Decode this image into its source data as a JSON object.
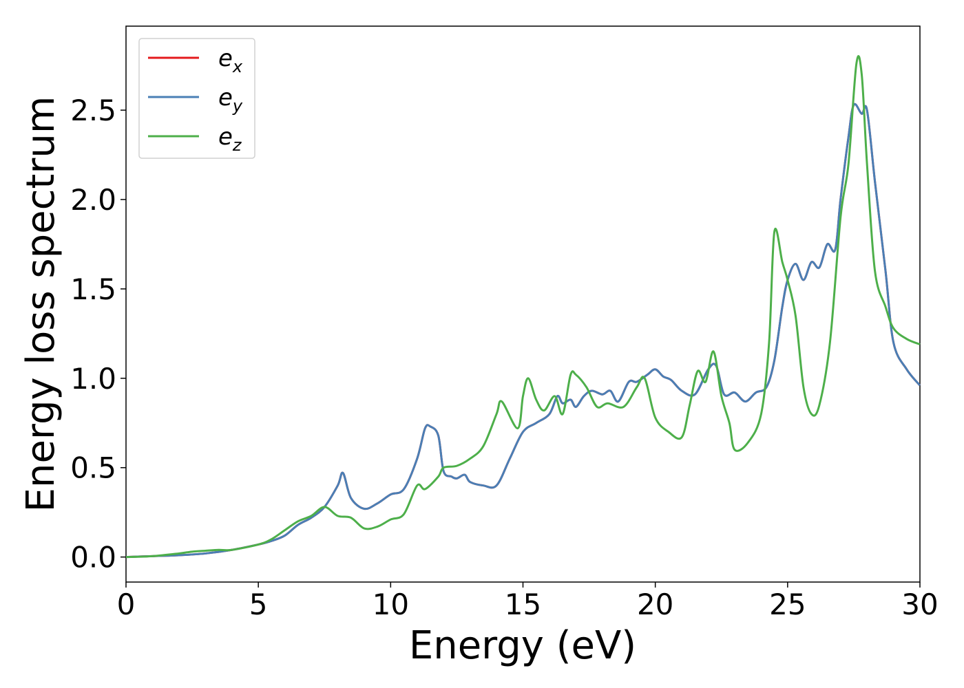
{
  "chart_data": {
    "type": "line",
    "xlabel": "Energy (eV)",
    "ylabel": "Energy loss spectrum",
    "xlim": [
      0,
      30
    ],
    "ylim": [
      -0.14,
      2.97
    ],
    "xticks": [
      0,
      5,
      10,
      15,
      20,
      25,
      30
    ],
    "xtick_labels": [
      "0",
      "5",
      "10",
      "15",
      "20",
      "25",
      "30"
    ],
    "yticks": [
      0.0,
      0.5,
      1.0,
      1.5,
      2.0,
      2.5
    ],
    "ytick_labels": [
      "0.0",
      "0.5",
      "1.0",
      "1.5",
      "2.0",
      "2.5"
    ],
    "grid": false,
    "legend_position": "upper-left",
    "series": [
      {
        "name": "e",
        "subscript": "x",
        "color": "#e41a1c",
        "x": [
          0,
          1,
          2,
          3,
          4,
          5,
          5.5,
          6,
          6.5,
          7,
          7.5,
          8,
          8.2,
          8.5,
          9,
          9.5,
          10,
          10.5,
          11,
          11.3,
          11.5,
          11.8,
          12,
          12.3,
          12.5,
          12.8,
          13,
          13.5,
          14,
          14.5,
          15,
          15.5,
          16,
          16.3,
          16.5,
          16.8,
          17,
          17.3,
          17.6,
          18,
          18.3,
          18.6,
          19,
          19.3,
          19.7,
          20,
          20.3,
          20.6,
          21,
          21.5,
          22,
          22.3,
          22.6,
          23,
          23.4,
          23.8,
          24.2,
          24.5,
          24.8,
          25,
          25.3,
          25.6,
          25.9,
          26.2,
          26.5,
          26.8,
          27,
          27.3,
          27.5,
          27.8,
          28,
          28.3,
          28.7,
          29,
          29.5,
          30
        ],
        "y": [
          0,
          0.005,
          0.01,
          0.02,
          0.04,
          0.07,
          0.09,
          0.12,
          0.18,
          0.22,
          0.28,
          0.4,
          0.47,
          0.33,
          0.27,
          0.3,
          0.35,
          0.38,
          0.55,
          0.72,
          0.73,
          0.68,
          0.48,
          0.45,
          0.44,
          0.46,
          0.42,
          0.4,
          0.4,
          0.55,
          0.7,
          0.75,
          0.8,
          0.9,
          0.86,
          0.88,
          0.84,
          0.9,
          0.93,
          0.91,
          0.93,
          0.87,
          0.98,
          0.98,
          1.02,
          1.05,
          1.01,
          0.99,
          0.93,
          0.91,
          1.05,
          1.07,
          0.91,
          0.92,
          0.87,
          0.92,
          0.95,
          1.1,
          1.4,
          1.55,
          1.64,
          1.55,
          1.65,
          1.62,
          1.75,
          1.72,
          2.0,
          2.35,
          2.53,
          2.48,
          2.5,
          2.1,
          1.6,
          1.2,
          1.05,
          0.96
        ]
      },
      {
        "name": "e",
        "subscript": "y",
        "color": "#4a7fb5",
        "x": [
          0,
          1,
          2,
          3,
          4,
          5,
          5.5,
          6,
          6.5,
          7,
          7.5,
          8,
          8.2,
          8.5,
          9,
          9.5,
          10,
          10.5,
          11,
          11.3,
          11.5,
          11.8,
          12,
          12.3,
          12.5,
          12.8,
          13,
          13.5,
          14,
          14.5,
          15,
          15.5,
          16,
          16.3,
          16.5,
          16.8,
          17,
          17.3,
          17.6,
          18,
          18.3,
          18.6,
          19,
          19.3,
          19.7,
          20,
          20.3,
          20.6,
          21,
          21.5,
          22,
          22.3,
          22.6,
          23,
          23.4,
          23.8,
          24.2,
          24.5,
          24.8,
          25,
          25.3,
          25.6,
          25.9,
          26.2,
          26.5,
          26.8,
          27,
          27.3,
          27.5,
          27.8,
          28,
          28.3,
          28.7,
          29,
          29.5,
          30
        ],
        "y": [
          0,
          0.005,
          0.01,
          0.02,
          0.04,
          0.07,
          0.09,
          0.12,
          0.18,
          0.22,
          0.28,
          0.4,
          0.47,
          0.33,
          0.27,
          0.3,
          0.35,
          0.38,
          0.55,
          0.72,
          0.73,
          0.68,
          0.48,
          0.45,
          0.44,
          0.46,
          0.42,
          0.4,
          0.4,
          0.55,
          0.7,
          0.75,
          0.8,
          0.9,
          0.86,
          0.88,
          0.84,
          0.9,
          0.93,
          0.91,
          0.93,
          0.87,
          0.98,
          0.98,
          1.02,
          1.05,
          1.01,
          0.99,
          0.93,
          0.91,
          1.05,
          1.07,
          0.91,
          0.92,
          0.87,
          0.92,
          0.95,
          1.1,
          1.4,
          1.55,
          1.64,
          1.55,
          1.65,
          1.62,
          1.75,
          1.72,
          2.0,
          2.35,
          2.53,
          2.48,
          2.5,
          2.1,
          1.6,
          1.2,
          1.05,
          0.96
        ]
      },
      {
        "name": "e",
        "subscript": "z",
        "color": "#4daf4a",
        "x": [
          0,
          1,
          2,
          2.5,
          3,
          3.5,
          4,
          5,
          5.5,
          6,
          6.5,
          7,
          7.5,
          8,
          8.5,
          9,
          9.5,
          10,
          10.5,
          11,
          11.3,
          11.8,
          12,
          12.5,
          13,
          13.5,
          14,
          14.2,
          14.8,
          15,
          15.2,
          15.5,
          15.8,
          16.2,
          16.5,
          16.8,
          17,
          17.4,
          17.8,
          18.2,
          18.8,
          19.3,
          19.6,
          20,
          20.5,
          21,
          21.3,
          21.6,
          21.9,
          22.2,
          22.5,
          22.8,
          23,
          23.5,
          24,
          24.3,
          24.5,
          24.8,
          25,
          25.3,
          25.6,
          25.9,
          26.2,
          26.6,
          27,
          27.3,
          27.6,
          27.8,
          28,
          28.3,
          28.7,
          29,
          29.5,
          30
        ],
        "y": [
          0,
          0.005,
          0.02,
          0.03,
          0.035,
          0.04,
          0.04,
          0.07,
          0.1,
          0.15,
          0.2,
          0.23,
          0.28,
          0.23,
          0.22,
          0.16,
          0.17,
          0.21,
          0.24,
          0.4,
          0.38,
          0.45,
          0.5,
          0.51,
          0.55,
          0.62,
          0.8,
          0.87,
          0.72,
          0.9,
          1.0,
          0.88,
          0.82,
          0.9,
          0.8,
          1.02,
          1.02,
          0.95,
          0.84,
          0.86,
          0.84,
          0.95,
          1.0,
          0.78,
          0.7,
          0.67,
          0.85,
          1.04,
          0.98,
          1.15,
          0.9,
          0.75,
          0.6,
          0.64,
          0.8,
          1.2,
          1.82,
          1.65,
          1.55,
          1.35,
          0.95,
          0.8,
          0.85,
          1.2,
          1.9,
          2.2,
          2.76,
          2.7,
          2.2,
          1.6,
          1.4,
          1.28,
          1.22,
          1.19
        ]
      }
    ]
  }
}
